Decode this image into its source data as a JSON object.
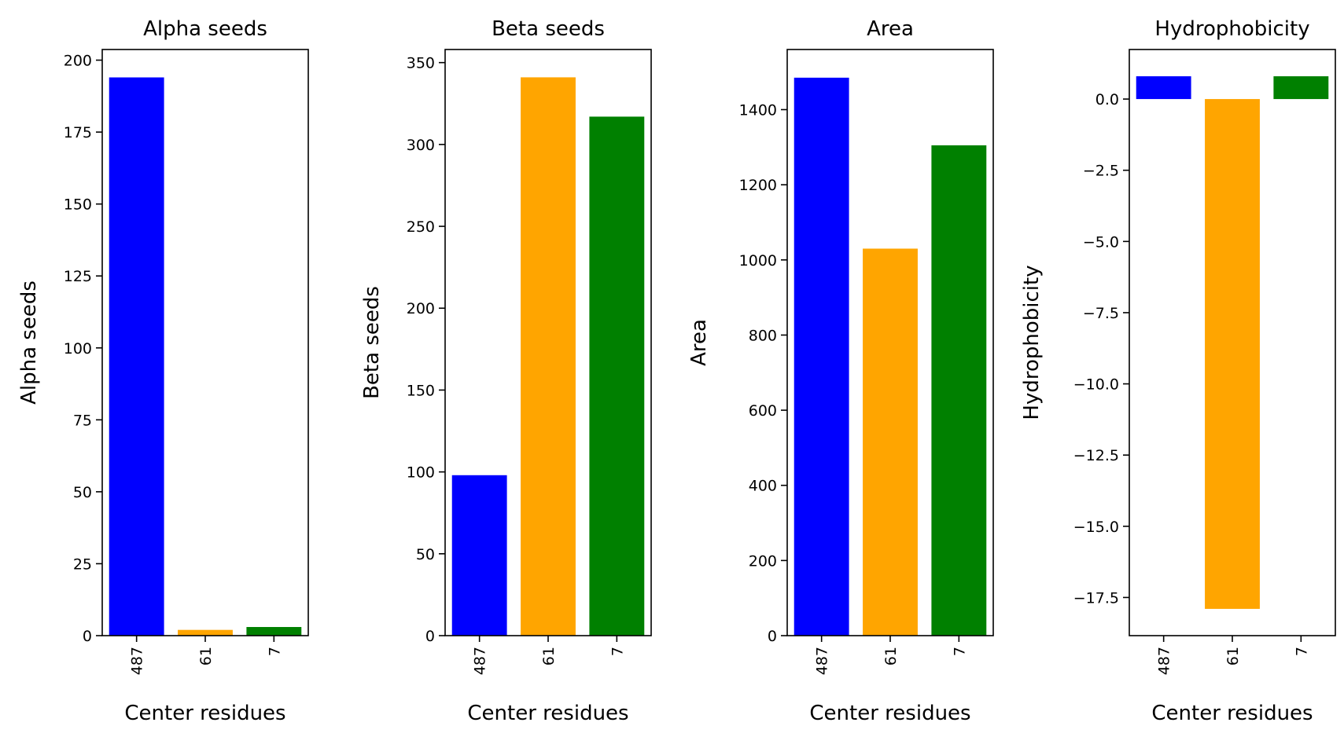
{
  "chart_data": [
    {
      "type": "bar",
      "title": "Alpha seeds",
      "xlabel": "Center residues",
      "ylabel": "Alpha seeds",
      "categories": [
        "487",
        "61",
        "7"
      ],
      "values": [
        194,
        2,
        3
      ],
      "colors": [
        "#0000ff",
        "#ffa500",
        "#008000"
      ],
      "ylim": [
        0,
        203.7
      ],
      "yticks": [
        0,
        25,
        50,
        75,
        100,
        125,
        150,
        175,
        200
      ],
      "ytick_labels": [
        "0",
        "25",
        "50",
        "75",
        "100",
        "125",
        "150",
        "175",
        "200"
      ],
      "grid": false,
      "legend": "none"
    },
    {
      "type": "bar",
      "title": "Beta seeds",
      "xlabel": "Center residues",
      "ylabel": "Beta seeds",
      "categories": [
        "487",
        "61",
        "7"
      ],
      "values": [
        98,
        341,
        317
      ],
      "colors": [
        "#0000ff",
        "#ffa500",
        "#008000"
      ],
      "ylim": [
        0,
        358
      ],
      "yticks": [
        0,
        50,
        100,
        150,
        200,
        250,
        300,
        350
      ],
      "ytick_labels": [
        "0",
        "50",
        "100",
        "150",
        "200",
        "250",
        "300",
        "350"
      ],
      "grid": false,
      "legend": "none"
    },
    {
      "type": "bar",
      "title": "Area",
      "xlabel": "Center residues",
      "ylabel": "Area",
      "categories": [
        "487",
        "61",
        "7"
      ],
      "values": [
        1485,
        1030,
        1305
      ],
      "colors": [
        "#0000ff",
        "#ffa500",
        "#008000"
      ],
      "ylim": [
        0,
        1560
      ],
      "yticks": [
        0,
        200,
        400,
        600,
        800,
        1000,
        1200,
        1400
      ],
      "ytick_labels": [
        "0",
        "200",
        "400",
        "600",
        "800",
        "1000",
        "1200",
        "1400"
      ],
      "grid": false,
      "legend": "none"
    },
    {
      "type": "bar",
      "title": "Hydrophobicity",
      "xlabel": "Center residues",
      "ylabel": "Hydrophobicity",
      "categories": [
        "487",
        "61",
        "7"
      ],
      "values": [
        0.8,
        -17.9,
        0.8
      ],
      "colors": [
        "#0000ff",
        "#ffa500",
        "#008000"
      ],
      "ylim": [
        -18.84,
        1.74
      ],
      "yticks": [
        0,
        -2.5,
        -5,
        -7.5,
        -10,
        -12.5,
        -15,
        -17.5
      ],
      "ytick_labels": [
        "0.0",
        "−2.5",
        "−5.0",
        "−7.5",
        "−10.0",
        "−12.5",
        "−15.0",
        "−17.5"
      ],
      "grid": false,
      "legend": "none"
    }
  ]
}
